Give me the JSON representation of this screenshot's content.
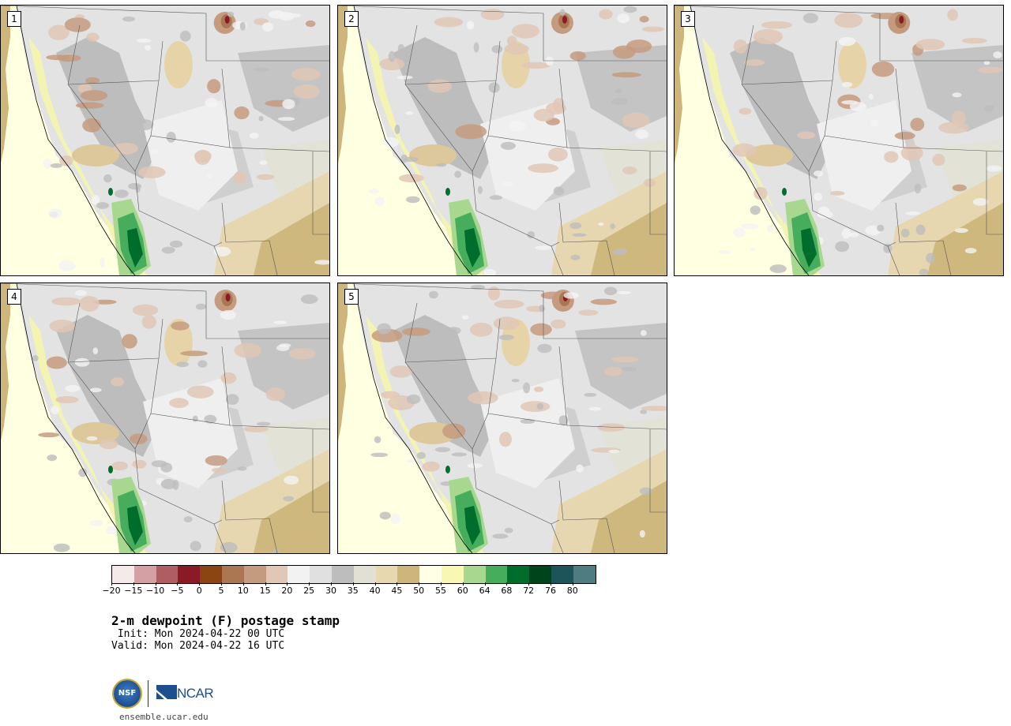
{
  "panels": [
    {
      "id": "1"
    },
    {
      "id": "2"
    },
    {
      "id": "3"
    },
    {
      "id": "4"
    },
    {
      "id": "5"
    }
  ],
  "colorbar": {
    "colors": [
      "#f5eaea",
      "#d4a0a4",
      "#b05c63",
      "#8a1a25",
      "#8b4513",
      "#aa7752",
      "#c59b80",
      "#e0c7b6",
      "#f2f2f2",
      "#e0e0e0",
      "#bdbdbd",
      "#e0e0d4",
      "#e8d8b0",
      "#cdb57b",
      "#ffffe6",
      "#f8f8b4",
      "#a8d890",
      "#45ad5c",
      "#006d2c",
      "#00441b",
      "#1d5459",
      "#4f7c80"
    ],
    "ticks": [
      "−20",
      "−15",
      "−10",
      "−5",
      "0",
      "5",
      "10",
      "15",
      "20",
      "25",
      "30",
      "35",
      "40",
      "45",
      "50",
      "55",
      "60",
      "64",
      "68",
      "72",
      "76",
      "80"
    ]
  },
  "title": "2-m dewpoint (F) postage stamp",
  "init_line": " Init: Mon 2024-04-22 00 UTC",
  "valid_line": "Valid: Mon 2024-04-22 16 UTC",
  "logo": {
    "nsf_text": "NSF",
    "ncar_text": "NCAR"
  },
  "url": "ensemble.ucar.edu"
}
